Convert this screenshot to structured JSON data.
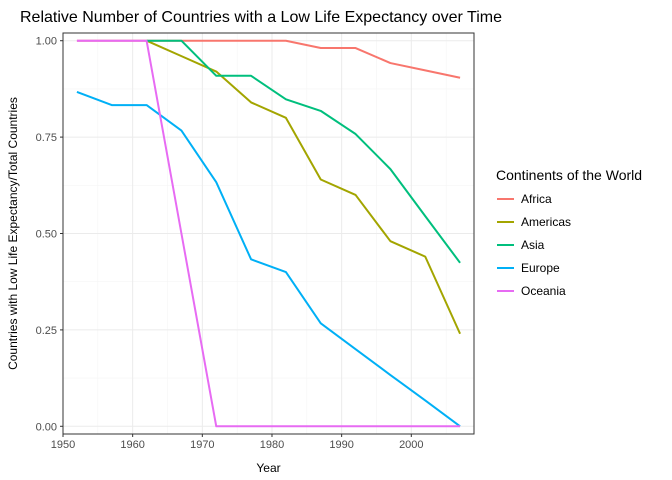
{
  "chart_data": {
    "type": "line",
    "title": "Relative Number of Countries with a Low Life Expectancy over Time",
    "xlabel": "Year",
    "ylabel": "Countries with Low Life Expectancy/Total Countries",
    "xlim": [
      1950,
      2009
    ],
    "ylim": [
      -0.02,
      1.02
    ],
    "xticks": [
      1950,
      1960,
      1970,
      1980,
      1990,
      2000
    ],
    "yticks": [
      0.0,
      0.25,
      0.5,
      0.75,
      1.0
    ],
    "xtick_labels": [
      "1950",
      "1960",
      "1970",
      "1980",
      "1990",
      "2000"
    ],
    "ytick_labels": [
      "0.00",
      "0.25",
      "0.50",
      "0.75",
      "1.00"
    ],
    "grid": true,
    "legend": {
      "title": "Continents of the World",
      "placement": "right"
    },
    "series": [
      {
        "name": "Africa",
        "color": "#F8766D",
        "x": [
          1952,
          1957,
          1962,
          1967,
          1972,
          1977,
          1982,
          1987,
          1992,
          1997,
          2002,
          2007
        ],
        "y": [
          1.0,
          1.0,
          1.0,
          1.0,
          1.0,
          1.0,
          1.0,
          0.981,
          0.981,
          0.942,
          0.923,
          0.904
        ]
      },
      {
        "name": "Americas",
        "color": "#A3A500",
        "x": [
          1962,
          1967,
          1972,
          1977,
          1982,
          1987,
          1992,
          1997,
          2002,
          2007
        ],
        "y": [
          1.0,
          0.96,
          0.92,
          0.84,
          0.8,
          0.64,
          0.6,
          0.48,
          0.44,
          0.24
        ]
      },
      {
        "name": "Asia",
        "color": "#00BF7D",
        "x": [
          1962,
          1967,
          1972,
          1977,
          1982,
          1987,
          1992,
          1997,
          2002,
          2007
        ],
        "y": [
          1.0,
          1.0,
          0.909,
          0.909,
          0.848,
          0.818,
          0.758,
          0.667,
          0.545,
          0.424
        ]
      },
      {
        "name": "Europe",
        "color": "#00B0F6",
        "x": [
          1952,
          1957,
          1962,
          1967,
          1972,
          1977,
          1982,
          1987,
          1992,
          1997,
          2002,
          2007
        ],
        "y": [
          0.867,
          0.833,
          0.833,
          0.767,
          0.633,
          0.433,
          0.4,
          0.267,
          0.2,
          0.133,
          0.067,
          0.0
        ]
      },
      {
        "name": "Oceania",
        "color": "#E76BF3",
        "x": [
          1952,
          1957,
          1962,
          1967,
          1972,
          1977,
          1982,
          1987,
          1992,
          1997,
          2002,
          2007
        ],
        "y": [
          1.0,
          1.0,
          1.0,
          0.5,
          0.0,
          0.0,
          0.0,
          0.0,
          0.0,
          0.0,
          0.0,
          0.0
        ]
      }
    ]
  }
}
